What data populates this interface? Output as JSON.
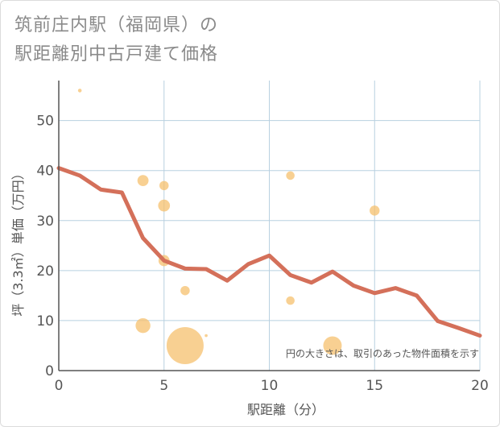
{
  "chart_data": {
    "type": "scatter",
    "title_line1": "筑前庄内駅（福岡県）の",
    "title_line2": "駅距離別中古戸建て価格",
    "xlabel": "駅距離（分）",
    "ylabel": "坪（3.3㎡）単価（万円）",
    "xlim": [
      0,
      20
    ],
    "ylim": [
      0,
      58
    ],
    "xticks": [
      0,
      5,
      10,
      15,
      20
    ],
    "yticks": [
      0,
      10,
      20,
      30,
      40,
      50
    ],
    "xtick_labels": [
      "0",
      "5",
      "10",
      "15",
      "20"
    ],
    "ytick_labels": [
      "0",
      "10",
      "20",
      "30",
      "40",
      "50"
    ],
    "grid": true,
    "note": "円の大きさは、取引のあった物件面積を示す",
    "colors": {
      "bubble": "#f5c06e",
      "line": "#d4705a",
      "grid": "#b8d0e0",
      "axis": "#555555"
    },
    "points": [
      {
        "x": 1,
        "y": 56,
        "size": 1
      },
      {
        "x": 4,
        "y": 38,
        "size": 3
      },
      {
        "x": 4,
        "y": 9,
        "size": 4
      },
      {
        "x": 5,
        "y": 37,
        "size": 2.5
      },
      {
        "x": 5,
        "y": 33,
        "size": 3.2
      },
      {
        "x": 5,
        "y": 22,
        "size": 3
      },
      {
        "x": 6,
        "y": 16,
        "size": 2.5
      },
      {
        "x": 6,
        "y": 5,
        "size": 10
      },
      {
        "x": 7,
        "y": 7,
        "size": 0.8
      },
      {
        "x": 11,
        "y": 39,
        "size": 2.3
      },
      {
        "x": 11,
        "y": 14,
        "size": 2.3
      },
      {
        "x": 13,
        "y": 5,
        "size": 5
      },
      {
        "x": 15,
        "y": 32,
        "size": 2.7
      }
    ],
    "trend": {
      "x": [
        0,
        1,
        2,
        3,
        4,
        5,
        6,
        7,
        8,
        9,
        10,
        11,
        12,
        13,
        14,
        15,
        16,
        17,
        18,
        19,
        20
      ],
      "y": [
        40.5,
        39,
        36.2,
        35.6,
        26.5,
        22,
        20.4,
        20.3,
        18,
        21.3,
        23,
        19.1,
        17.6,
        19.8,
        17,
        15.5,
        16.5,
        15,
        9.9,
        8.5,
        7
      ]
    }
  }
}
